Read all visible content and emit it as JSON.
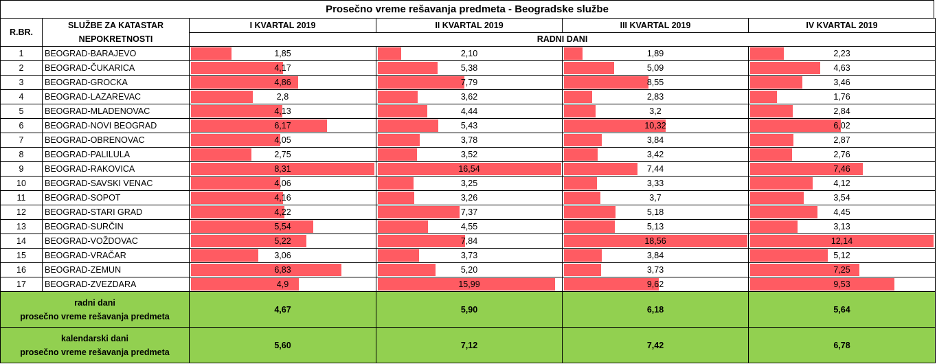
{
  "title": "Prosečno vreme rešavanja predmeta - Beogradske službe",
  "headers": {
    "rbr": "R.BR.",
    "service_line1": "SLUŽBE ZA KATASTAR",
    "service_line2": "NEPOKRETNOSTI",
    "quarters": [
      "I KVARTAL 2019",
      "II KVARTAL 2019",
      "III KVARTAL 2019",
      "IV KVARTAL 2019"
    ],
    "unit": "RADNI DANI"
  },
  "rows": [
    {
      "n": "1",
      "name": "BEOGRAD-BARAJEVO",
      "q": [
        "1,85",
        "2,10",
        "1,89",
        "2,23"
      ]
    },
    {
      "n": "2",
      "name": "BEOGRAD-ČUKARICA",
      "q": [
        "4,17",
        "5,38",
        "5,09",
        "4,63"
      ]
    },
    {
      "n": "3",
      "name": "BEOGRAD-GROCKA",
      "q": [
        "4,86",
        "7,79",
        "8,55",
        "3,46"
      ]
    },
    {
      "n": "4",
      "name": "BEOGRAD-LAZAREVAC",
      "q": [
        "2,8",
        "3,62",
        "2,83",
        "1,76"
      ]
    },
    {
      "n": "5",
      "name": "BEOGRAD-MLADENOVAC",
      "q": [
        "4,13",
        "4,44",
        "3,2",
        "2,84"
      ]
    },
    {
      "n": "6",
      "name": "BEOGRAD-NOVI BEOGRAD",
      "q": [
        "6,17",
        "5,43",
        "10,32",
        "6,02"
      ]
    },
    {
      "n": "7",
      "name": "BEOGRAD-OBRENOVAC",
      "q": [
        "4,05",
        "3,78",
        "3,84",
        "2,87"
      ]
    },
    {
      "n": "8",
      "name": "BEOGRAD-PALILULA",
      "q": [
        "2,75",
        "3,52",
        "3,42",
        "2,76"
      ]
    },
    {
      "n": "9",
      "name": "BEOGRAD-RAKOVICA",
      "q": [
        "8,31",
        "16,54",
        "7,44",
        "7,46"
      ]
    },
    {
      "n": "10",
      "name": "BEOGRAD-SAVSKI VENAC",
      "q": [
        "4,06",
        "3,25",
        "3,33",
        "4,12"
      ]
    },
    {
      "n": "11",
      "name": "BEOGRAD-SOPOT",
      "q": [
        "4,16",
        "3,26",
        "3,7",
        "3,54"
      ]
    },
    {
      "n": "12",
      "name": "BEOGRAD-STARI GRAD",
      "q": [
        "4,22",
        "7,37",
        "5,18",
        "4,45"
      ]
    },
    {
      "n": "13",
      "name": "BEOGRAD-SURČIN",
      "q": [
        "5,54",
        "4,55",
        "5,13",
        "3,13"
      ]
    },
    {
      "n": "14",
      "name": "BEOGRAD-VOŽDOVAC",
      "q": [
        "5,22",
        "7,84",
        "18,56",
        "12,14"
      ]
    },
    {
      "n": "15",
      "name": "BEOGRAD-VRAČAR",
      "q": [
        "3,06",
        "3,73",
        "3,84",
        "5,12"
      ]
    },
    {
      "n": "16",
      "name": "BEOGRAD-ZEMUN",
      "q": [
        "6,83",
        "5,20",
        "3,73",
        "7,25"
      ]
    },
    {
      "n": "17",
      "name": "BEOGRAD-ZVEZDARA",
      "q": [
        "4,9",
        "15,99",
        "9,62",
        "9,53"
      ]
    }
  ],
  "summary": [
    {
      "label1": "radni dani",
      "label2": "prosečno vreme rešavanja predmeta",
      "q": [
        "4,67",
        "5,90",
        "6,18",
        "5,64"
      ]
    },
    {
      "label1": "kalendarski dani",
      "label2": "prosečno vreme rešavanja predmeta",
      "q": [
        "5,60",
        "7,12",
        "7,42",
        "6,78"
      ]
    }
  ],
  "colors": {
    "bar": "#ff5b62",
    "summary_bg": "#92d050"
  }
}
